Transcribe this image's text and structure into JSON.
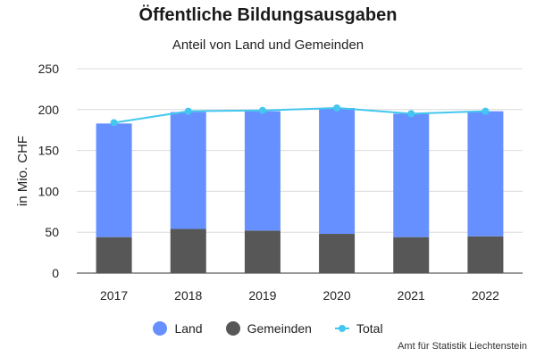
{
  "chart_data": {
    "type": "bar",
    "title": "Öffentliche Bildungsausgaben",
    "subtitle": "Anteil von Land und Gemeinden",
    "xlabel": "",
    "ylabel": "in Mio. CHF",
    "ylim": [
      0,
      250
    ],
    "yticks": [
      0,
      50,
      100,
      150,
      200,
      250
    ],
    "categories": [
      "2017",
      "2018",
      "2019",
      "2020",
      "2021",
      "2022"
    ],
    "stacked": true,
    "series": [
      {
        "name": "Land",
        "type": "bar",
        "color": "#6690ff",
        "values": [
          139,
          143,
          146,
          154,
          151,
          153
        ]
      },
      {
        "name": "Gemeinden",
        "type": "bar",
        "color": "#575757",
        "values": [
          44,
          54,
          52,
          48,
          44,
          45
        ]
      },
      {
        "name": "Total",
        "type": "line",
        "color": "#44c7ef",
        "values": [
          184,
          198,
          199,
          202,
          195,
          198
        ]
      }
    ],
    "legend_position": "bottom-center",
    "grid": true,
    "source": "Amt für Statistik Liechtenstein"
  }
}
